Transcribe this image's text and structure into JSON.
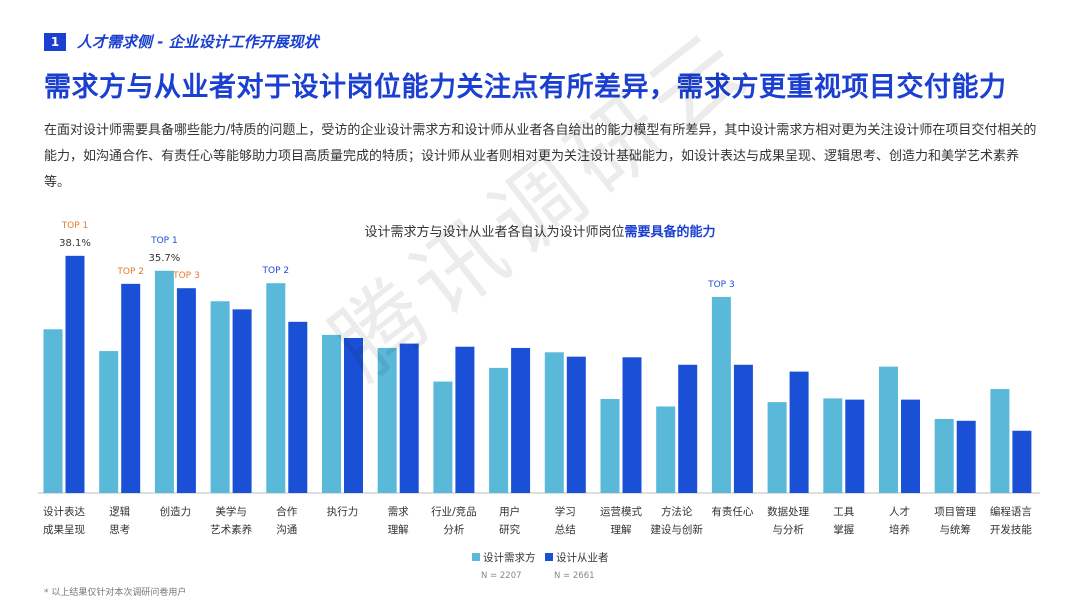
{
  "section": {
    "number": "1",
    "title": "人才需求侧 - 企业设计工作开展现状"
  },
  "headline": "需求方与从业者对于设计岗位能力关注点有所差异，需求方更重视项目交付能力",
  "intro": "在面对设计师需要具备哪些能力/特质的问题上，受访的企业设计需求方和设计师从业者各自给出的能力模型有所差异，其中设计需求方相对更为关注设计师在项目交付相关的能力，如沟通合作、有责任心等能够助力项目高质量完成的特质；设计师从业者则相对更为关注设计基础能力，如设计表达与成果呈现、逻辑思考、创造力和美学艺术素养等。",
  "watermark": "腾讯调研云",
  "footnote": "* 以上结果仅针对本次调研问卷用户",
  "colors": {
    "brand": "#1a3fd1",
    "series_demand": "#5ab8d9",
    "series_practitioner": "#1a50d6",
    "top_demand": "#1a50d6",
    "top_practitioner": "#e37a2f"
  },
  "chart_data": {
    "type": "bar",
    "title_prefix": "设计需求方与设计从业者各自认为设计师岗位",
    "title_highlight": "需要具备的能力",
    "categories": [
      [
        "设计表达",
        "成果呈现"
      ],
      [
        "逻辑",
        "思考"
      ],
      [
        "创造力"
      ],
      [
        "美学与",
        "艺术素养"
      ],
      [
        "合作",
        "沟通"
      ],
      [
        "执行力"
      ],
      [
        "需求",
        "理解"
      ],
      [
        "行业/竞品",
        "分析"
      ],
      [
        "用户",
        "研究"
      ],
      [
        "学习",
        "总结"
      ],
      [
        "运营模式",
        "理解"
      ],
      [
        "方法论",
        "建设与创新"
      ],
      [
        "有责任心"
      ],
      [
        "数据处理",
        "与分析"
      ],
      [
        "工具",
        "掌握"
      ],
      [
        "人才",
        "培养"
      ],
      [
        "项目管理",
        "与统筹"
      ],
      [
        "编程语言",
        "开发技能"
      ]
    ],
    "series": [
      {
        "name": "设计需求方",
        "n": "N = 2207",
        "values": [
          26.3,
          22.8,
          35.7,
          30.8,
          33.7,
          25.4,
          23.3,
          17.9,
          20.1,
          22.6,
          15.1,
          13.9,
          31.5,
          14.6,
          15.2,
          20.3,
          11.9,
          16.7
        ]
      },
      {
        "name": "设计从业者",
        "n": "N = 2661",
        "values": [
          38.1,
          33.6,
          32.9,
          29.5,
          27.5,
          24.9,
          24.0,
          23.5,
          23.3,
          21.9,
          21.8,
          20.6,
          20.6,
          19.5,
          15.0,
          15.0,
          11.6,
          10.0
        ]
      }
    ],
    "annotations": [
      {
        "series": 1,
        "index": 0,
        "label": "TOP 1",
        "value_label": "38.1%"
      },
      {
        "series": 1,
        "index": 1,
        "label": "TOP 2"
      },
      {
        "series": 1,
        "index": 2,
        "label": "TOP 3"
      },
      {
        "series": 0,
        "index": 2,
        "label": "TOP 1",
        "value_label": "35.7%"
      },
      {
        "series": 0,
        "index": 4,
        "label": "TOP 2"
      },
      {
        "series": 0,
        "index": 12,
        "label": "TOP 3"
      }
    ],
    "ylim": [
      0,
      40
    ]
  }
}
